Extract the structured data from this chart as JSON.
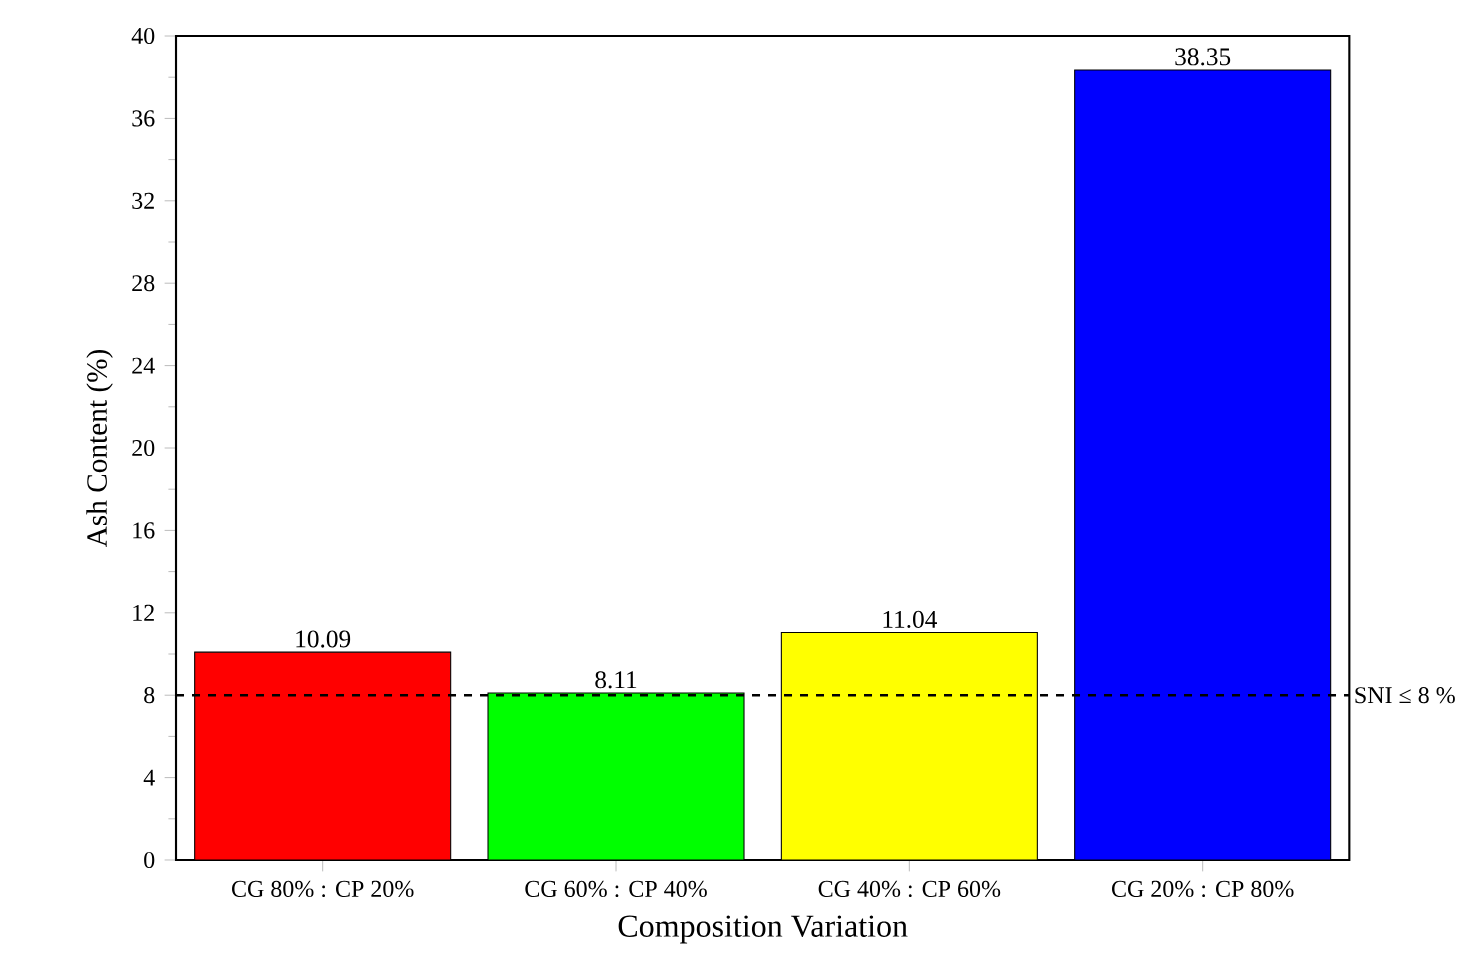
{
  "chart_data": {
    "type": "bar",
    "xlabel": "Composition Variation",
    "ylabel": "Ash Content (%)",
    "categories": [
      "CG 80% : CP 20%",
      "CG 60% : CP 40%",
      "CG 40% : CP 60%",
      "CG 20% : CP 80%"
    ],
    "values": [
      10.09,
      8.11,
      11.04,
      38.35
    ],
    "colors": [
      "#ff0000",
      "#00ff00",
      "#ffff00",
      "#0000ff"
    ],
    "ylim": [
      0,
      40
    ],
    "yticks": [
      0,
      4,
      8,
      12,
      16,
      20,
      24,
      28,
      32,
      36,
      40
    ],
    "data_labels": true,
    "ref_lines": [
      {
        "axis": "y",
        "value": 8,
        "label": "SNI ≤ 8 %",
        "line_style": "dashed",
        "color": "#000000"
      }
    ]
  }
}
